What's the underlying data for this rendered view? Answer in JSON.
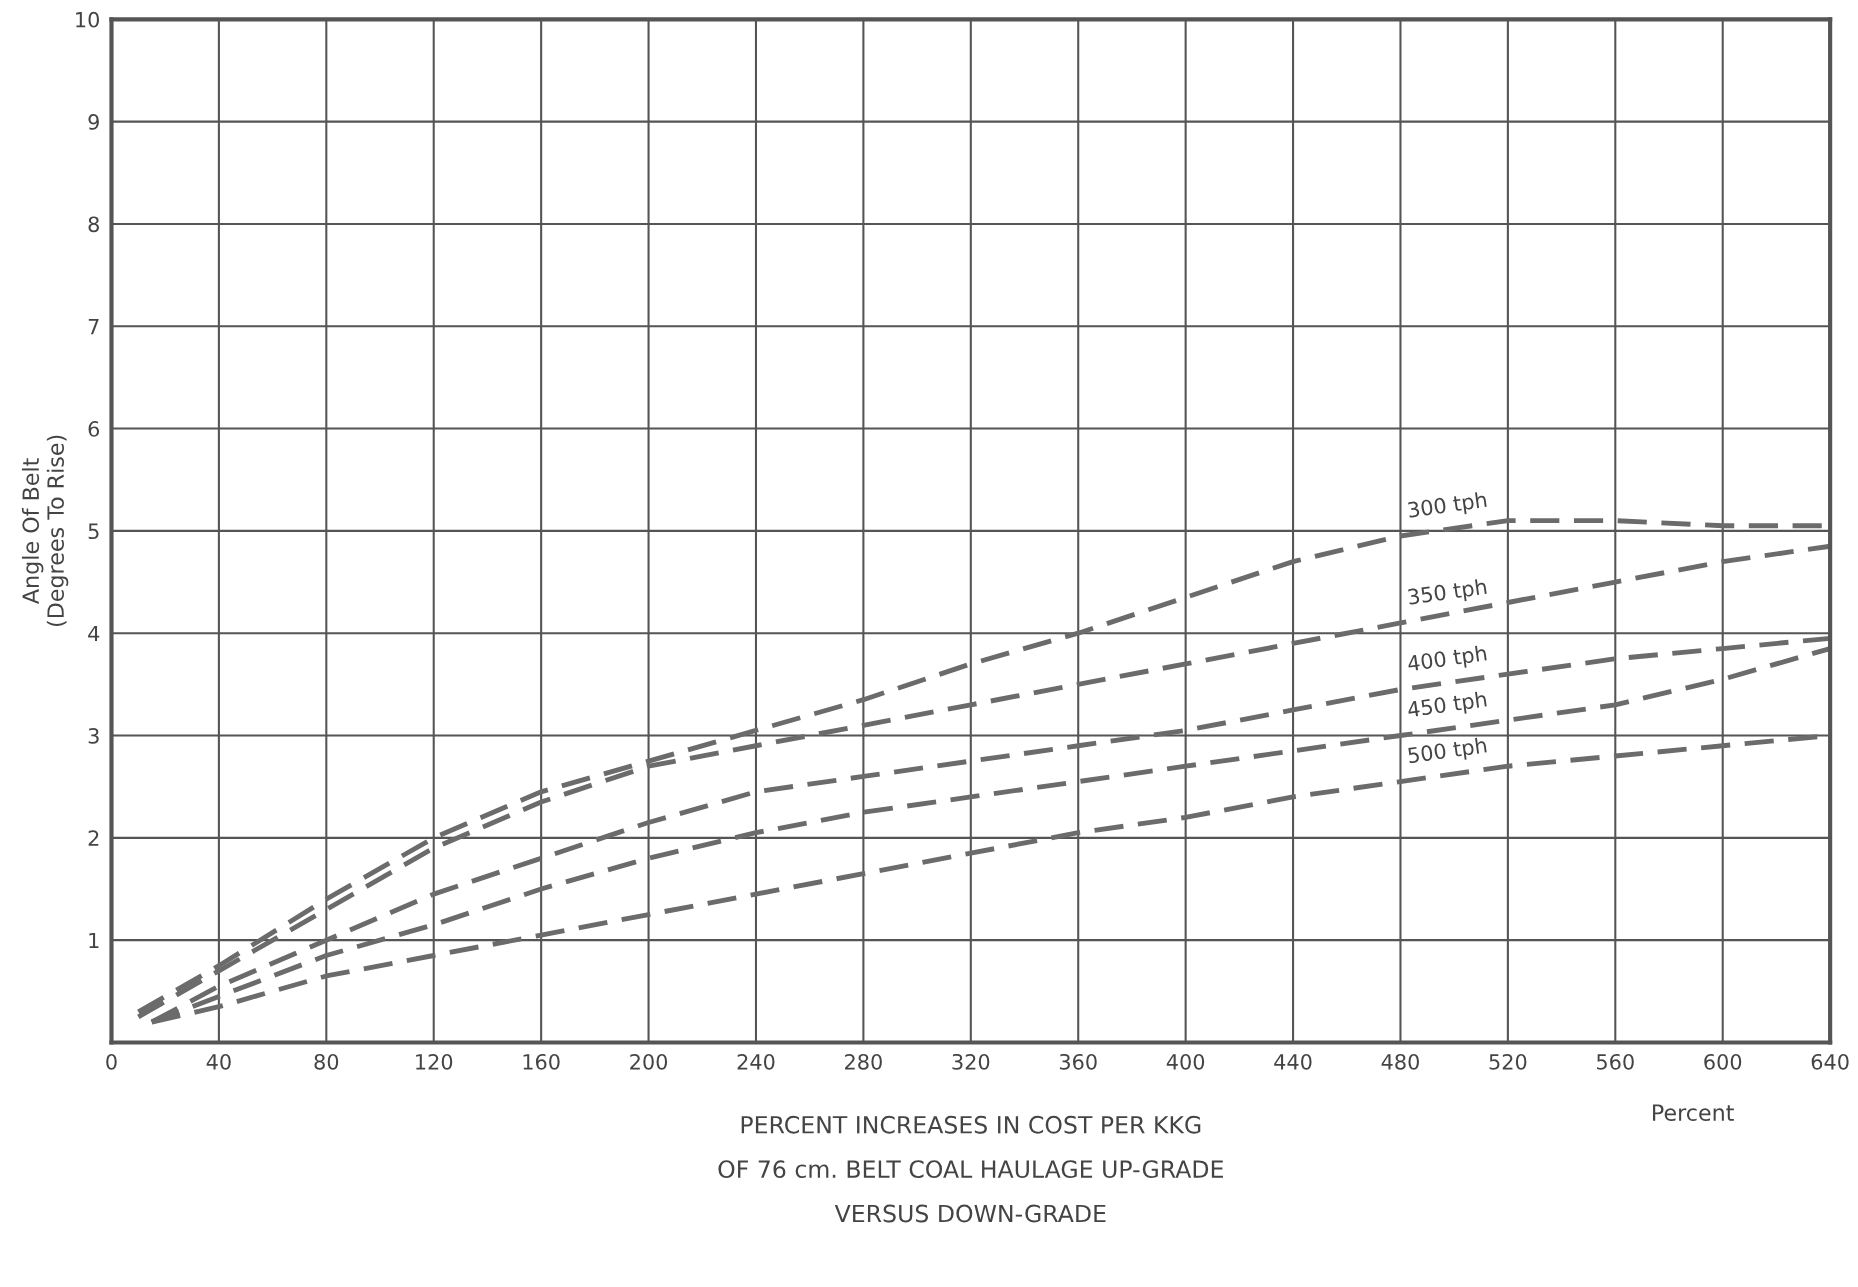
{
  "chart_data": {
    "type": "line",
    "xlabel": "PERCENT INCREASES IN COST PER KKG\nOF 76 cm. BELT COAL HAULAGE UP-GRADE\nVERSUS DOWN-GRADE",
    "ylabel": "Angle Of Belt\n(Degrees To Rise)",
    "annotations": [
      "Percent"
    ],
    "xlim": [
      0,
      640
    ],
    "xticks": [
      0,
      40,
      80,
      120,
      160,
      200,
      240,
      280,
      320,
      360,
      400,
      440,
      480,
      520,
      560,
      600,
      640
    ],
    "ylim": [
      0,
      10
    ],
    "yticks": [
      {
        "value": 0,
        "label": null
      },
      1,
      2,
      3,
      4,
      5,
      6,
      7,
      8,
      9,
      10
    ],
    "grid": true,
    "line_style": "dashed",
    "marker": "none",
    "series": [
      {
        "name": "300 tph",
        "color": "#6b6b6b",
        "x": [
          10,
          40,
          80,
          120,
          160,
          200,
          240,
          280,
          320,
          360,
          400,
          440,
          480,
          520,
          560,
          600,
          640
        ],
        "values": [
          0.3,
          0.75,
          1.4,
          2.0,
          2.45,
          2.75,
          3.05,
          3.35,
          3.7,
          4.0,
          4.35,
          4.7,
          4.95,
          5.1,
          5.1,
          5.05,
          5.05
        ]
      },
      {
        "name": "350 tph",
        "color": "#6b6b6b",
        "x": [
          10,
          40,
          80,
          120,
          160,
          200,
          240,
          280,
          320,
          360,
          400,
          440,
          480,
          520,
          560,
          600,
          640
        ],
        "values": [
          0.25,
          0.7,
          1.3,
          1.9,
          2.35,
          2.7,
          2.9,
          3.1,
          3.3,
          3.5,
          3.7,
          3.9,
          4.1,
          4.3,
          4.5,
          4.7,
          4.85
        ]
      },
      {
        "name": "400 tph",
        "color": "#6b6b6b",
        "x": [
          15,
          40,
          80,
          120,
          160,
          200,
          240,
          280,
          320,
          360,
          400,
          440,
          480,
          520,
          560,
          600,
          640
        ],
        "values": [
          0.2,
          0.55,
          1.0,
          1.45,
          1.8,
          2.15,
          2.45,
          2.6,
          2.75,
          2.9,
          3.05,
          3.25,
          3.45,
          3.6,
          3.75,
          3.85,
          3.95
        ]
      },
      {
        "name": "450 tph",
        "color": "#6b6b6b",
        "x": [
          15,
          40,
          80,
          120,
          160,
          200,
          240,
          280,
          320,
          360,
          400,
          440,
          480,
          520,
          560,
          600,
          640
        ],
        "values": [
          0.2,
          0.45,
          0.85,
          1.15,
          1.5,
          1.8,
          2.05,
          2.25,
          2.4,
          2.55,
          2.7,
          2.85,
          3.0,
          3.15,
          3.3,
          3.55,
          3.85
        ]
      },
      {
        "name": "500 tph",
        "color": "#6b6b6b",
        "x": [
          15,
          40,
          80,
          120,
          160,
          200,
          240,
          280,
          320,
          360,
          400,
          440,
          480,
          520,
          560,
          600,
          640
        ],
        "values": [
          0.2,
          0.35,
          0.65,
          0.85,
          1.05,
          1.25,
          1.45,
          1.65,
          1.85,
          2.05,
          2.2,
          2.4,
          2.55,
          2.7,
          2.8,
          2.9,
          3.0
        ]
      }
    ]
  }
}
